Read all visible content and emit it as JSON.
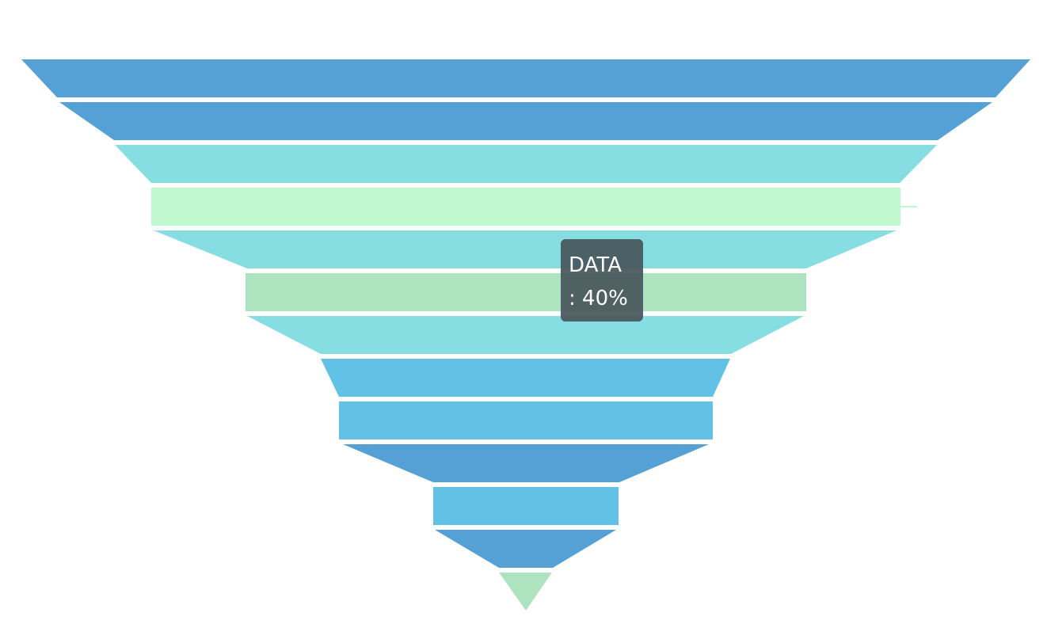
{
  "chart_data": {
    "type": "funnel",
    "orientation": "inverted-triangle",
    "gap_between_segments": true,
    "segments": [
      {
        "shape": "trapezoid",
        "color": "#55a1d6"
      },
      {
        "shape": "trapezoid",
        "color": "#55a1d6"
      },
      {
        "shape": "trapezoid",
        "color": "#86dde2"
      },
      {
        "shape": "rectangle",
        "color": "#c0f8d0"
      },
      {
        "shape": "trapezoid",
        "color": "#86dde2"
      },
      {
        "shape": "rectangle",
        "color": "#ade4bf"
      },
      {
        "shape": "trapezoid",
        "color": "#86dde2"
      },
      {
        "shape": "trapezoid",
        "color": "#61c2e6"
      },
      {
        "shape": "rectangle",
        "color": "#61c2e6"
      },
      {
        "shape": "trapezoid",
        "color": "#55a1d6"
      },
      {
        "shape": "rectangle",
        "color": "#61c2e6"
      },
      {
        "shape": "trapezoid",
        "color": "#55a1d6"
      },
      {
        "shape": "triangle",
        "color": "#ade4bf"
      }
    ],
    "highlighted_segment_index": 5,
    "tooltip": {
      "label_line": "DATA",
      "value_line": ": 40%"
    }
  }
}
